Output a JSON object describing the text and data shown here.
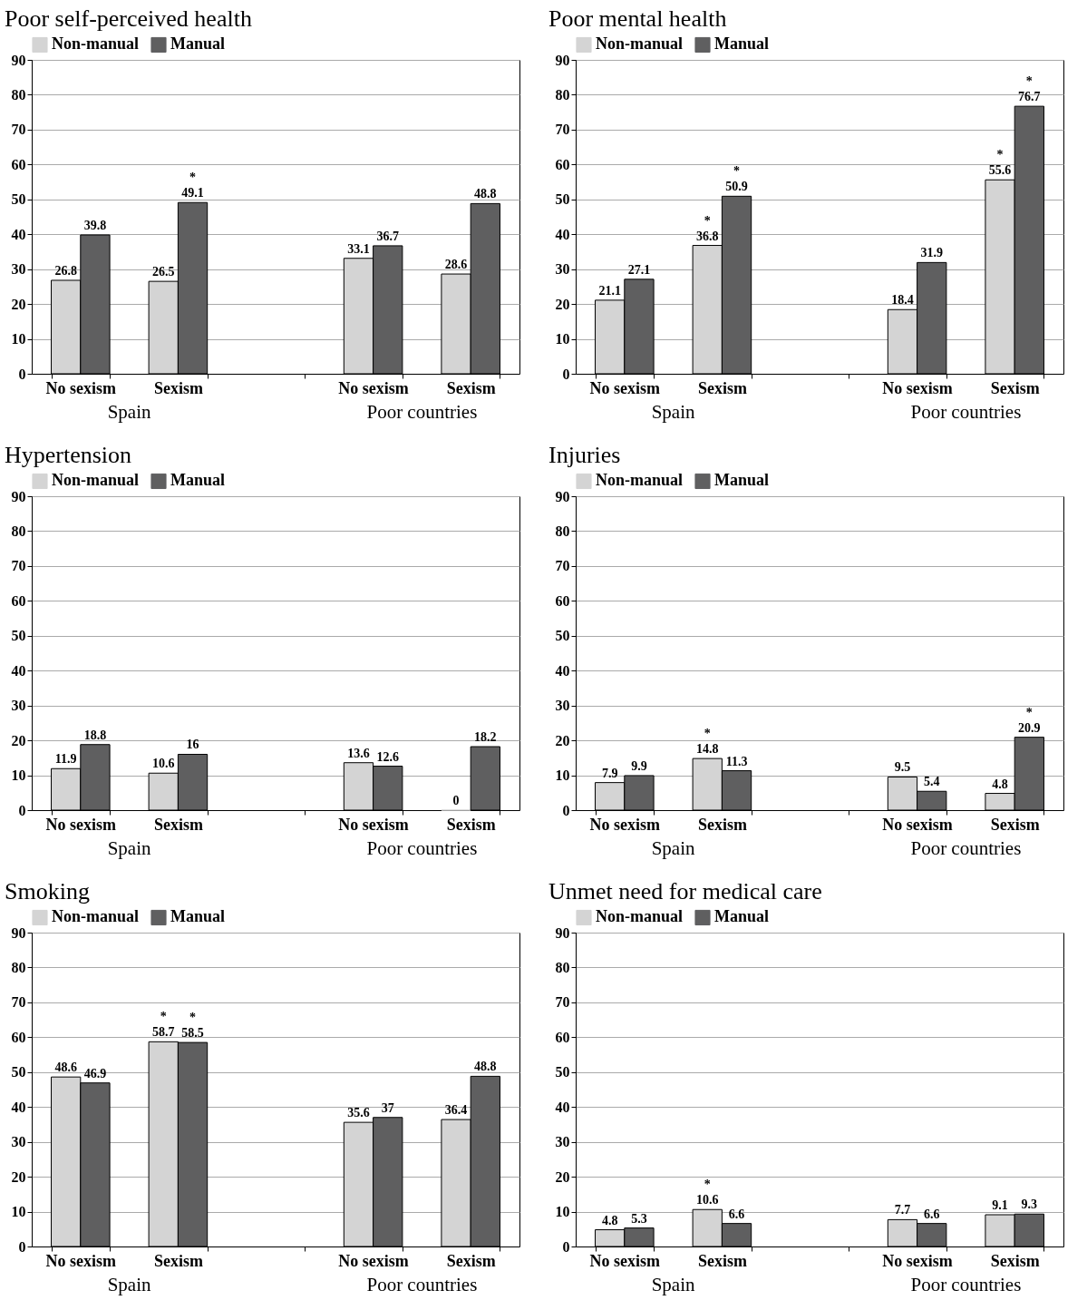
{
  "chart_data": [
    {
      "type": "bar",
      "title": "Poor self-perceived health",
      "categories": [
        "No sexism",
        "Sexism",
        null,
        "No sexism",
        "Sexism"
      ],
      "ylim": [
        0,
        90
      ],
      "yticks": [
        0,
        10,
        20,
        30,
        40,
        50,
        60,
        70,
        80,
        90
      ],
      "grid": "y",
      "legend": "top",
      "annotations": [
        "Spain",
        "Poor countries"
      ],
      "series": [
        {
          "name": "Non-manual",
          "color": "#d4d4d4",
          "values": [
            26.8,
            26.5,
            null,
            33.1,
            28.6
          ],
          "value_labels": [
            "26.8",
            "26.5",
            null,
            "33.1",
            "28.6"
          ]
        },
        {
          "name": "Manual",
          "color": "#5f5f60",
          "values": [
            39.8,
            49.1,
            null,
            36.7,
            48.8
          ],
          "value_labels": [
            "39.8",
            "*\n49.1",
            null,
            "36.7",
            "48.8"
          ]
        }
      ]
    },
    {
      "type": "bar",
      "title": "Poor mental health",
      "categories": [
        "No sexism",
        "Sexism",
        null,
        "No sexism",
        "Sexism"
      ],
      "ylim": [
        0,
        90
      ],
      "yticks": [
        0,
        10,
        20,
        30,
        40,
        50,
        60,
        70,
        80,
        90
      ],
      "grid": "y",
      "legend": "top",
      "annotations": [
        "Spain",
        "Poor countries"
      ],
      "series": [
        {
          "name": "Non-manual",
          "color": "#d4d4d4",
          "values": [
            21.1,
            36.8,
            null,
            18.4,
            55.6
          ],
          "value_labels": [
            "21.1",
            "*\n36.8",
            null,
            "18.4",
            "*\n55.6"
          ]
        },
        {
          "name": "Manual",
          "color": "#5f5f60",
          "values": [
            27.1,
            50.9,
            null,
            31.9,
            76.7
          ],
          "value_labels": [
            "27.1",
            "*\n50.9",
            null,
            "31.9",
            "*\n76.7"
          ]
        }
      ]
    },
    {
      "type": "bar",
      "title": "Hypertension",
      "categories": [
        "No sexism",
        "Sexism",
        null,
        "No sexism",
        "Sexism"
      ],
      "ylim": [
        0,
        90
      ],
      "yticks": [
        0,
        10,
        20,
        30,
        40,
        50,
        60,
        70,
        80,
        90
      ],
      "grid": "y",
      "legend": "top",
      "annotations": [
        "Spain",
        "Poor countries"
      ],
      "series": [
        {
          "name": "Non-manual",
          "color": "#d4d4d4",
          "values": [
            11.9,
            10.6,
            null,
            13.6,
            0
          ],
          "value_labels": [
            "11.9",
            "10.6",
            null,
            "13.6",
            "0"
          ]
        },
        {
          "name": "Manual",
          "color": "#5f5f60",
          "values": [
            18.8,
            16,
            null,
            12.6,
            18.2
          ],
          "value_labels": [
            "18.8",
            "16",
            null,
            "12.6",
            "18.2"
          ]
        }
      ]
    },
    {
      "type": "bar",
      "title": "Injuries",
      "categories": [
        "No sexism",
        "Sexism",
        null,
        "No sexism",
        "Sexism"
      ],
      "ylim": [
        0,
        90
      ],
      "yticks": [
        0,
        10,
        20,
        30,
        40,
        50,
        60,
        70,
        80,
        90
      ],
      "grid": "y",
      "legend": "top",
      "annotations": [
        "Spain",
        "Poor countries"
      ],
      "series": [
        {
          "name": "Non-manual",
          "color": "#d4d4d4",
          "values": [
            7.9,
            14.8,
            null,
            9.5,
            4.8
          ],
          "value_labels": [
            "7.9",
            "*\n14.8",
            null,
            "9.5",
            "4.8"
          ]
        },
        {
          "name": "Manual",
          "color": "#5f5f60",
          "values": [
            9.9,
            11.3,
            null,
            5.4,
            20.9
          ],
          "value_labels": [
            "9.9",
            "11.3",
            null,
            "5.4",
            "*\n20.9"
          ]
        }
      ]
    },
    {
      "type": "bar",
      "title": "Smoking",
      "categories": [
        "No sexism",
        "Sexism",
        null,
        "No sexism",
        "Sexism"
      ],
      "ylim": [
        0,
        90
      ],
      "yticks": [
        0,
        10,
        20,
        30,
        40,
        50,
        60,
        70,
        80,
        90
      ],
      "grid": "y",
      "legend": "top",
      "annotations": [
        "Spain",
        "Poor countries"
      ],
      "series": [
        {
          "name": "Non-manual",
          "color": "#d4d4d4",
          "values": [
            48.6,
            58.7,
            null,
            35.6,
            36.4
          ],
          "value_labels": [
            "48.6",
            "*\n58.7",
            null,
            "35.6",
            "36.4"
          ]
        },
        {
          "name": "Manual",
          "color": "#5f5f60",
          "values": [
            46.9,
            58.5,
            null,
            37,
            48.8
          ],
          "value_labels": [
            "46.9",
            "*\n58.5",
            null,
            "37",
            "48.8"
          ]
        }
      ]
    },
    {
      "type": "bar",
      "title": "Unmet need for medical care",
      "categories": [
        "No sexism",
        "Sexism",
        null,
        "No sexism",
        "Sexism"
      ],
      "ylim": [
        0,
        90
      ],
      "yticks": [
        0,
        10,
        20,
        30,
        40,
        50,
        60,
        70,
        80,
        90
      ],
      "grid": "y",
      "legend": "top",
      "annotations": [
        "Spain",
        "Poor countries"
      ],
      "series": [
        {
          "name": "Non-manual",
          "color": "#d4d4d4",
          "values": [
            4.8,
            10.6,
            null,
            7.7,
            9.1
          ],
          "value_labels": [
            "4.8",
            "*\n10.6",
            null,
            "7.7",
            "9.1"
          ]
        },
        {
          "name": "Manual",
          "color": "#5f5f60",
          "values": [
            5.3,
            6.6,
            null,
            6.6,
            9.3
          ],
          "value_labels": [
            "5.3",
            "6.6",
            null,
            "6.6",
            "9.3"
          ]
        }
      ]
    }
  ]
}
